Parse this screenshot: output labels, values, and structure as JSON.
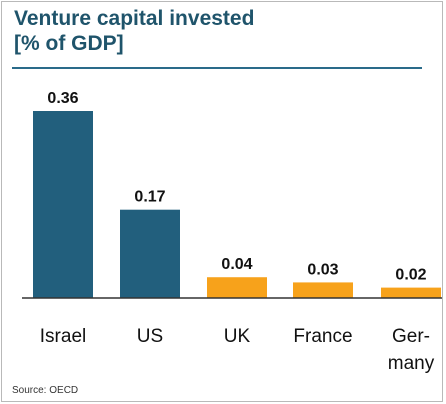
{
  "chart_data": {
    "type": "bar",
    "title": "Venture capital invested",
    "subtitle": "[% of GDP]",
    "categories": [
      "Israel",
      "US",
      "UK",
      "France",
      "Germany"
    ],
    "category_display": [
      [
        "Israel"
      ],
      [
        "US"
      ],
      [
        "UK"
      ],
      [
        "France"
      ],
      [
        "Ger-",
        "many"
      ]
    ],
    "values": [
      0.36,
      0.17,
      0.04,
      0.03,
      0.02
    ],
    "value_labels": [
      "0.36",
      "0.17",
      "0.04",
      "0.03",
      "0.02"
    ],
    "colors": [
      "#225f7d",
      "#225f7d",
      "#f7a21b",
      "#f7a21b",
      "#f7a21b"
    ],
    "ylim": [
      0,
      0.36
    ],
    "grid": false,
    "source": "Source: OECD"
  }
}
